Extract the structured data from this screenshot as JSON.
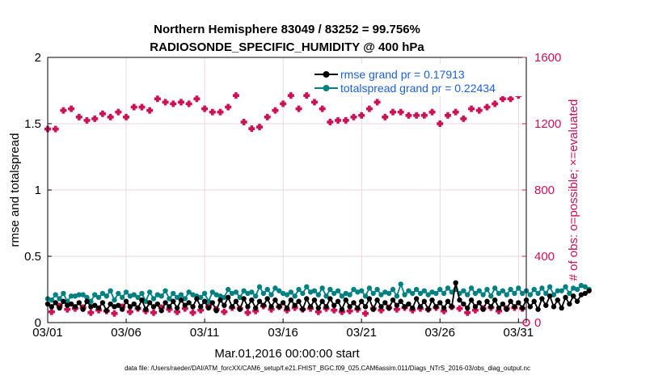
{
  "chart_data": {
    "type": "line",
    "title_line1": "Northern Hemisphere 83049 / 83252 = 99.756%",
    "title_line2": "RADIOSONDE_SPECIFIC_HUMIDITY @ 400 hPa",
    "xlabel": "Mar.01,2016 00:00:00 start",
    "ylabel_left": "rmse and totalspread",
    "ylabel_right": "# of obs: o=possible; ×=evaluated",
    "footnote": "data file: /Users/raeder/DAI/ATM_forcXX/CAM6_setup/f.e21.FHIST_BGC.f09_025.CAM6assim.011/Diags_NTrS_2016-03/obs_diag_output.nc",
    "x_tick_labels": [
      "03/01",
      "03/06",
      "03/11",
      "03/16",
      "03/21",
      "03/26",
      "03/31"
    ],
    "x_tick_days": [
      1,
      6,
      11,
      16,
      21,
      26,
      31
    ],
    "xlim": [
      1,
      31.5
    ],
    "y_left_ticks": [
      "0",
      "0.5",
      "1",
      "1.5",
      "2"
    ],
    "y_left_tick_values": [
      0,
      0.5,
      1,
      1.5,
      2
    ],
    "ylim_left": [
      0,
      2
    ],
    "y_right_ticks": [
      "0",
      "400",
      "800",
      "1200",
      "1600"
    ],
    "y_right_tick_values": [
      0,
      400,
      800,
      1200,
      1600
    ],
    "ylim_right": [
      0,
      1600
    ],
    "x_step_days": 0.25,
    "series": [
      {
        "name": "rmse",
        "legend": "rmse grand pr = 0.17913",
        "color": "#000000",
        "axis": "left",
        "values": [
          0.14,
          0.12,
          0.15,
          0.11,
          0.16,
          0.13,
          0.14,
          0.12,
          0.15,
          0.1,
          0.16,
          0.12,
          0.13,
          0.11,
          0.15,
          0.09,
          0.14,
          0.12,
          0.13,
          0.1,
          0.16,
          0.12,
          0.14,
          0.11,
          0.17,
          0.1,
          0.15,
          0.12,
          0.14,
          0.09,
          0.15,
          0.12,
          0.16,
          0.11,
          0.17,
          0.13,
          0.15,
          0.12,
          0.18,
          0.12,
          0.16,
          0.11,
          0.15,
          0.09,
          0.17,
          0.13,
          0.19,
          0.12,
          0.16,
          0.1,
          0.18,
          0.12,
          0.17,
          0.11,
          0.16,
          0.13,
          0.18,
          0.12,
          0.17,
          0.12,
          0.15,
          0.11,
          0.17,
          0.13,
          0.16,
          0.1,
          0.18,
          0.12,
          0.17,
          0.11,
          0.16,
          0.12,
          0.18,
          0.13,
          0.16,
          0.1,
          0.17,
          0.12,
          0.15,
          0.11,
          0.16,
          0.12,
          0.18,
          0.1,
          0.17,
          0.12,
          0.15,
          0.11,
          0.17,
          0.13,
          0.16,
          0.12,
          0.14,
          0.11,
          0.18,
          0.12,
          0.16,
          0.1,
          0.17,
          0.12,
          0.15,
          0.11,
          0.16,
          0.12,
          0.3,
          0.17,
          0.14,
          0.11,
          0.17,
          0.12,
          0.15,
          0.1,
          0.16,
          0.12,
          0.17,
          0.11,
          0.14,
          0.1,
          0.16,
          0.12,
          0.15,
          0.11,
          0.17,
          0.12,
          0.16,
          0.1,
          0.18,
          0.13,
          0.2,
          0.12,
          0.17,
          0.11,
          0.19,
          0.14,
          0.2,
          0.16,
          0.21,
          0.22,
          0.24
        ]
      },
      {
        "name": "totalspread",
        "legend": "totalspread grand pr = 0.22434",
        "color": "#008080",
        "axis": "left",
        "values": [
          0.18,
          0.17,
          0.21,
          0.18,
          0.22,
          0.16,
          0.2,
          0.2,
          0.21,
          0.21,
          0.19,
          0.16,
          0.21,
          0.19,
          0.22,
          0.2,
          0.24,
          0.17,
          0.22,
          0.19,
          0.23,
          0.2,
          0.21,
          0.19,
          0.22,
          0.16,
          0.23,
          0.18,
          0.21,
          0.2,
          0.24,
          0.18,
          0.22,
          0.19,
          0.21,
          0.18,
          0.23,
          0.21,
          0.2,
          0.19,
          0.22,
          0.16,
          0.23,
          0.21,
          0.2,
          0.19,
          0.25,
          0.22,
          0.23,
          0.19,
          0.24,
          0.22,
          0.23,
          0.2,
          0.27,
          0.22,
          0.25,
          0.21,
          0.26,
          0.24,
          0.22,
          0.21,
          0.23,
          0.2,
          0.25,
          0.22,
          0.27,
          0.23,
          0.24,
          0.21,
          0.26,
          0.2,
          0.25,
          0.22,
          0.24,
          0.2,
          0.22,
          0.21,
          0.25,
          0.23,
          0.24,
          0.2,
          0.26,
          0.22,
          0.25,
          0.21,
          0.23,
          0.22,
          0.25,
          0.2,
          0.29,
          0.21,
          0.24,
          0.22,
          0.25,
          0.22,
          0.24,
          0.21,
          0.23,
          0.22,
          0.25,
          0.22,
          0.26,
          0.23,
          0.25,
          0.22,
          0.24,
          0.21,
          0.26,
          0.22,
          0.24,
          0.21,
          0.25,
          0.2,
          0.26,
          0.22,
          0.24,
          0.21,
          0.25,
          0.22,
          0.26,
          0.22,
          0.24,
          0.21,
          0.25,
          0.22,
          0.26,
          0.22,
          0.27,
          0.21,
          0.24,
          0.24,
          0.27,
          0.22,
          0.26,
          0.25,
          0.28,
          0.27,
          0.25
        ]
      }
    ],
    "obs_possible": {
      "name": "possible",
      "marker": "o",
      "axis": "right",
      "color": "#cc1155",
      "x_days": [
        1,
        1.25,
        1.5,
        1.75,
        2.0,
        2.25,
        2.5,
        2.75,
        3.0,
        3.25,
        3.5,
        3.75,
        4.0,
        4.25,
        4.5,
        4.75,
        5.0,
        5.25,
        5.5,
        5.75,
        6.0,
        6.25,
        6.5,
        6.75,
        7.0,
        7.25,
        7.5,
        7.75,
        8.0,
        8.25,
        8.5,
        8.75,
        9.0,
        9.25,
        9.5,
        9.75,
        10.0,
        10.25,
        10.5,
        10.75,
        11.0,
        11.25,
        11.5,
        11.75,
        12.0,
        12.25,
        12.5,
        12.75,
        13.0,
        13.25,
        13.5,
        13.75,
        14.0,
        14.25,
        14.5,
        14.75,
        15.0,
        15.25,
        15.5,
        15.75,
        16.0,
        16.25,
        16.5,
        16.75,
        17.0,
        17.25,
        17.5,
        17.75,
        18.0,
        18.25,
        18.5,
        18.75,
        19.0,
        19.25,
        19.5,
        19.75,
        20.0,
        20.25,
        20.5,
        20.75,
        21.0,
        21.25,
        21.5,
        21.75,
        22.0,
        22.25,
        22.5,
        22.75,
        23.0,
        23.25,
        23.5,
        23.75,
        24.0,
        24.25,
        24.5,
        24.75,
        25.0,
        25.25,
        25.5,
        25.75,
        26.0,
        26.25,
        26.5,
        26.75,
        27.0,
        27.25,
        27.5,
        27.75,
        28.0,
        28.25,
        28.5,
        28.75,
        29.0,
        29.25,
        29.5,
        29.75,
        30.0,
        30.25,
        30.5,
        30.75,
        31.0,
        31.25
      ],
      "values": [
        1168,
        65,
        1168,
        100,
        1280,
        80,
        1290,
        85,
        1240,
        90,
        1220,
        60,
        1230,
        75,
        1260,
        70,
        1240,
        55,
        1270,
        95,
        1240,
        65,
        1300,
        85,
        1300,
        70,
        1280,
        60,
        1350,
        90,
        1330,
        80,
        1320,
        65,
        1330,
        85,
        1320,
        60,
        1350,
        75,
        1290,
        95,
        1270,
        80,
        1270,
        65,
        1300,
        90,
        1370,
        85,
        1210,
        60,
        1170,
        70,
        1180,
        100,
        1240,
        80,
        1280,
        95,
        1320,
        75,
        1370,
        90,
        1290,
        80,
        1370,
        85,
        1330,
        65,
        1290,
        85,
        1210,
        75,
        1220,
        65,
        1220,
        70,
        1240,
        80,
        1250,
        55,
        1290,
        85,
        1330,
        75,
        1240,
        90,
        1270,
        80,
        1270,
        90,
        1250,
        75,
        1250,
        85,
        1250,
        80,
        1270,
        90,
        1200,
        70,
        1250,
        95,
        1270,
        85,
        1230,
        60,
        1290,
        75,
        1280,
        85,
        1300,
        90,
        1320,
        70,
        1350,
        85,
        1350,
        90,
        1370,
        85
      ]
    },
    "obs_evaluated_zero_marker": {
      "x_day": 31.5,
      "value": 0
    },
    "legend_position": "top-right"
  }
}
